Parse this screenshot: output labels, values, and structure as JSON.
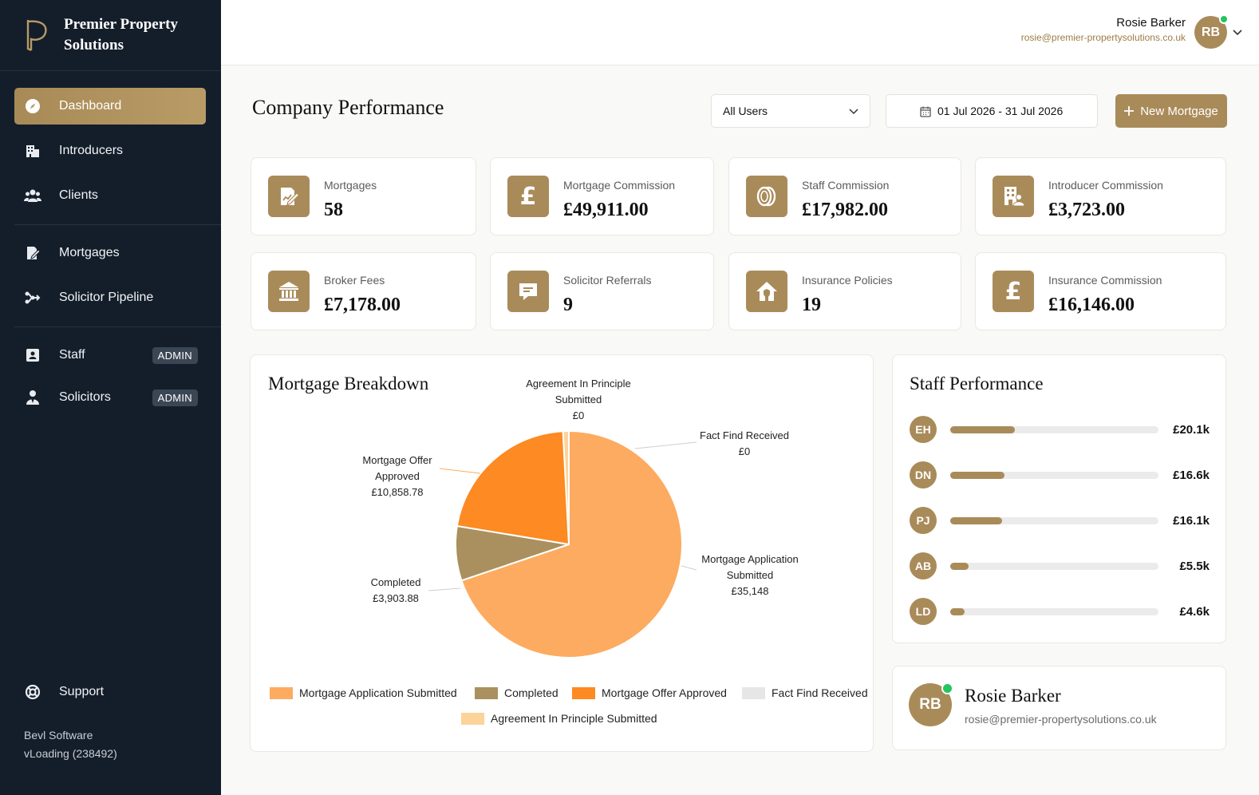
{
  "brand": {
    "name": "Premier Property Solutions"
  },
  "user": {
    "name": "Rosie Barker",
    "email": "rosie@premier-propertysolutions.co.uk",
    "initials": "RB"
  },
  "nav": [
    {
      "label": "Dashboard",
      "icon": "compass-icon"
    },
    {
      "label": "Introducers",
      "icon": "buildings-icon"
    },
    {
      "label": "Clients",
      "icon": "users-icon"
    },
    {
      "label": "Mortgages",
      "icon": "contract-icon"
    },
    {
      "label": "Solicitor Pipeline",
      "icon": "pipeline-icon"
    },
    {
      "label": "Staff",
      "icon": "id-badge-icon",
      "badge": "ADMIN"
    },
    {
      "label": "Solicitors",
      "icon": "person-icon",
      "badge": "ADMIN"
    }
  ],
  "support": {
    "label": "Support"
  },
  "footer": {
    "company": "Bevl Software",
    "version": "vLoading (238492)"
  },
  "page": {
    "title": "Company Performance",
    "filter_value": "All Users",
    "date_range": "01 Jul 2026 - 31 Jul 2026",
    "new_button": "New Mortgage"
  },
  "stats": [
    {
      "label": "Mortgages",
      "value": "58",
      "icon": "document-edit-icon"
    },
    {
      "label": "Mortgage Commission",
      "value": "£49,911.00",
      "icon": "pound-icon"
    },
    {
      "label": "Staff Commission",
      "value": "£17,982.00",
      "icon": "coins-icon"
    },
    {
      "label": "Introducer Commission",
      "value": "£3,723.00",
      "icon": "building-user-icon"
    },
    {
      "label": "Broker Fees",
      "value": "£7,178.00",
      "icon": "bank-icon"
    },
    {
      "label": "Solicitor Referrals",
      "value": "9",
      "icon": "message-icon"
    },
    {
      "label": "Insurance Policies",
      "value": "19",
      "icon": "house-shield-icon"
    },
    {
      "label": "Insurance Commission",
      "value": "£16,146.00",
      "icon": "pound-icon"
    }
  ],
  "breakdown": {
    "title": "Mortgage Breakdown",
    "labels": {
      "aip": [
        "Agreement In Principle",
        "Submitted",
        "£0"
      ],
      "ff": [
        "Fact Find Received",
        "£0"
      ],
      "moa": [
        "Mortgage Offer",
        "Approved",
        "£10,858.78"
      ],
      "comp": [
        "Completed",
        "£3,903.88"
      ],
      "mas": [
        "Mortgage Application",
        "Submitted",
        "£35,148"
      ]
    }
  },
  "chart_data": {
    "type": "pie",
    "title": "Mortgage Breakdown",
    "categories": [
      "Mortgage Application Submitted",
      "Completed",
      "Mortgage Offer Approved",
      "Fact Find Received",
      "Agreement In Principle Submitted"
    ],
    "values": [
      35148,
      3903.88,
      10858.78,
      0,
      0
    ],
    "colors": [
      "#fdab60",
      "#a9905e",
      "#fd8a22",
      "#e6e6e6",
      "#fcd399"
    ],
    "legend": "bottom"
  },
  "staff_performance": {
    "title": "Staff Performance",
    "rows": [
      {
        "initials": "EH",
        "amount": "£20.1k",
        "share": 0.31
      },
      {
        "initials": "DN",
        "amount": "£16.6k",
        "share": 0.26
      },
      {
        "initials": "PJ",
        "amount": "£16.1k",
        "share": 0.25
      },
      {
        "initials": "AB",
        "amount": "£5.5k",
        "share": 0.09
      },
      {
        "initials": "LD",
        "amount": "£4.6k",
        "share": 0.07
      }
    ]
  },
  "profile_card": {
    "name": "Rosie Barker",
    "email": "rosie@premier-propertysolutions.co.uk",
    "initials": "RB"
  }
}
